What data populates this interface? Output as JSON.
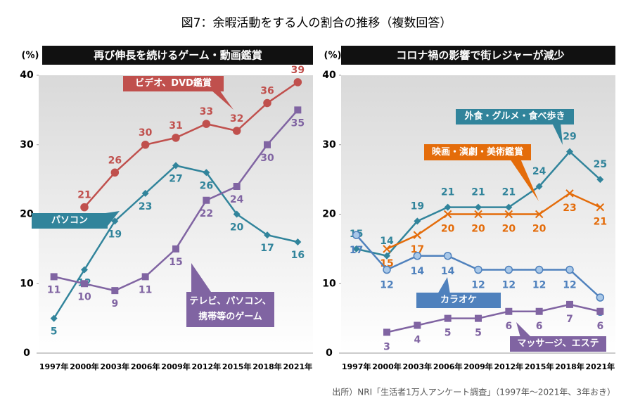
{
  "title": "図7：余暇活動をする人の割合の推移（複数回答）",
  "source": "出所）NRI「生活者1万人アンケート調査」（1997年～2021年、3年おき）",
  "chart_data": [
    {
      "type": "line",
      "title": "再び伸長を続けるゲーム・動画鑑賞",
      "y_label": "(%)",
      "categories": [
        "1997年",
        "2000年",
        "2003年",
        "2006年",
        "2009年",
        "2012年",
        "2015年",
        "2018年",
        "2021年"
      ],
      "ylim": [
        0,
        40
      ],
      "yticks": [
        0,
        10,
        20,
        30,
        40
      ],
      "grid": false,
      "series": [
        {
          "name": "ビデオ、DVD鑑賞",
          "color": "#c0504d",
          "marker": "circle",
          "values": [
            null,
            21,
            26,
            30,
            31,
            33,
            32,
            36,
            39
          ]
        },
        {
          "name": "パソコン",
          "color": "#31849b",
          "marker": "diamond",
          "values": [
            5,
            12,
            19,
            23,
            27,
            26,
            20,
            17,
            16
          ]
        },
        {
          "name": "テレビ、パソコン、携帯等のゲーム",
          "color": "#8064a2",
          "marker": "square",
          "values": [
            11,
            10,
            9,
            11,
            15,
            22,
            24,
            30,
            35
          ]
        }
      ]
    },
    {
      "type": "line",
      "title": "コロナ禍の影響で街レジャーが減少",
      "y_label": "(%)",
      "categories": [
        "1997年",
        "2000年",
        "2003年",
        "2006年",
        "2009年",
        "2012年",
        "2015年",
        "2018年",
        "2021年"
      ],
      "ylim": [
        0,
        40
      ],
      "yticks": [
        0,
        10,
        20,
        30,
        40
      ],
      "grid": false,
      "series": [
        {
          "name": "外食・グルメ・食べ歩き",
          "color": "#31849b",
          "marker": "diamond",
          "values": [
            15,
            14,
            19,
            21,
            21,
            21,
            24,
            29,
            25
          ]
        },
        {
          "name": "映画・演劇・美術鑑賞",
          "color": "#e46c0a",
          "marker": "x",
          "values": [
            null,
            15,
            17,
            20,
            20,
            20,
            20,
            23,
            21
          ]
        },
        {
          "name": "カラオケ",
          "color": "#4f81bd",
          "marker": "circle",
          "values": [
            17,
            12,
            14,
            14,
            12,
            12,
            12,
            12,
            8
          ]
        },
        {
          "name": "マッサージ、エステ",
          "color": "#8064a2",
          "marker": "square",
          "values": [
            null,
            3,
            4,
            5,
            5,
            6,
            6,
            7,
            6
          ]
        }
      ]
    }
  ]
}
